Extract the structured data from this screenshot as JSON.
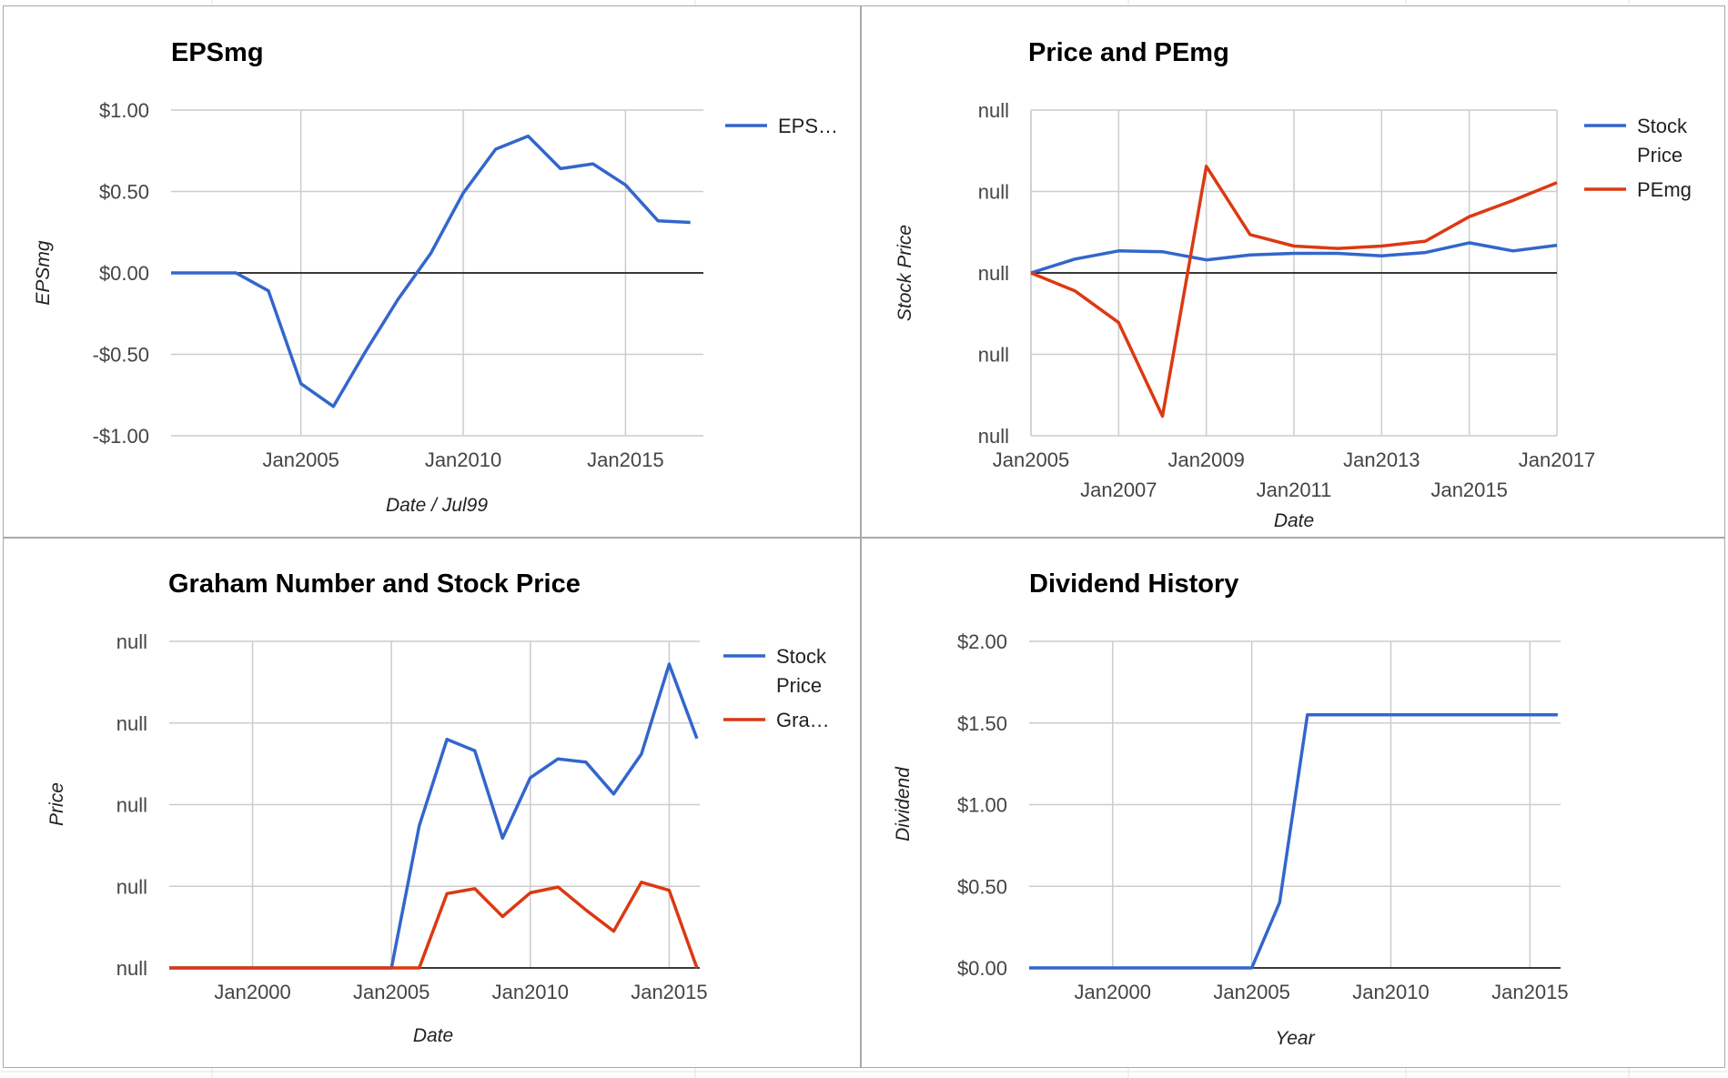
{
  "colors": {
    "blue": "#3366cc",
    "red": "#dc3912",
    "grid": "#cccccc",
    "baseline": "#000000"
  },
  "chart_data": [
    {
      "id": "epsmg",
      "type": "line",
      "title": "EPSmg",
      "xlabel": "Date / Jul99",
      "ylabel": "EPSmg",
      "x_ticks": [
        "Jan2005",
        "Jan2010",
        "Jan2015"
      ],
      "y_ticks": [
        "$1.00",
        "$0.50",
        "$0.00",
        "-$0.50",
        "-$1.00"
      ],
      "ylim": [
        -1.0,
        1.0
      ],
      "grid": true,
      "legend_position": "right",
      "legend": [
        "EPS…"
      ],
      "series": [
        {
          "name": "EPS…",
          "x": [
            "Jan2001",
            "Jan2002",
            "Jan2003",
            "Jan2004",
            "Jan2005",
            "Jan2006",
            "Jan2007",
            "Jan2008",
            "Jan2009",
            "Jan2010",
            "Jan2011",
            "Jan2012",
            "Jan2013",
            "Jan2014",
            "Jan2015",
            "Jan2016",
            "Jan2017"
          ],
          "values": [
            0.0,
            0.0,
            0.0,
            -0.11,
            -0.68,
            -0.82,
            -0.48,
            -0.16,
            0.12,
            0.49,
            0.76,
            0.84,
            0.64,
            0.67,
            0.54,
            0.32,
            0.31
          ]
        }
      ]
    },
    {
      "id": "price-pemg",
      "type": "line",
      "title": "Price and PEmg",
      "xlabel": "Date",
      "ylabel": "Stock Price",
      "x_ticks": [
        "Jan2005",
        "Jan2007",
        "Jan2009",
        "Jan2011",
        "Jan2013",
        "Jan2015",
        "Jan2017"
      ],
      "y_ticks": [
        "null",
        "null",
        "null",
        "null",
        "null"
      ],
      "grid": true,
      "legend_position": "right",
      "legend": [
        "Stock Price",
        "PEmg"
      ],
      "series": [
        {
          "name": "Stock Price",
          "x": [
            "Jan2005",
            "Jan2006",
            "Jan2007",
            "Jan2008",
            "Jan2009",
            "Jan2010",
            "Jan2011",
            "Jan2012",
            "Jan2013",
            "Jan2014",
            "Jan2015",
            "Jan2016",
            "Jan2017"
          ],
          "values": [
            0.0,
            0.17,
            0.27,
            0.26,
            0.16,
            0.22,
            0.24,
            0.24,
            0.21,
            0.25,
            0.37,
            0.27,
            0.34
          ]
        },
        {
          "name": "PEmg",
          "x": [
            "Jan2005",
            "Jan2006",
            "Jan2007",
            "Jan2008",
            "Jan2009",
            "Jan2010",
            "Jan2011",
            "Jan2012",
            "Jan2013",
            "Jan2014",
            "Jan2015",
            "Jan2016",
            "Jan2017"
          ],
          "values": [
            0.0,
            -0.22,
            -0.61,
            -1.76,
            1.31,
            0.47,
            0.33,
            0.3,
            0.33,
            0.39,
            0.69,
            0.89,
            1.11
          ]
        }
      ]
    },
    {
      "id": "graham",
      "type": "line",
      "title": "Graham Number and Stock Price",
      "xlabel": "Date",
      "ylabel": "Price",
      "x_ticks": [
        "Jan2000",
        "Jan2005",
        "Jan2010",
        "Jan2015"
      ],
      "y_ticks": [
        "null",
        "null",
        "null",
        "null",
        "null"
      ],
      "grid": true,
      "legend_position": "right",
      "legend": [
        "Stock Price",
        "Gra…"
      ],
      "series": [
        {
          "name": "Stock Price",
          "x": [
            "Jan1997",
            "Jan1998",
            "Jan1999",
            "Jan2000",
            "Jan2001",
            "Jan2002",
            "Jan2003",
            "Jan2004",
            "Jan2005",
            "Jan2006",
            "Jan2007",
            "Jan2008",
            "Jan2009",
            "Jan2010",
            "Jan2011",
            "Jan2012",
            "Jan2013",
            "Jan2014",
            "Jan2015",
            "Jan2016"
          ],
          "values": [
            0,
            0,
            0,
            0,
            0,
            0,
            0,
            0,
            0,
            1.74,
            2.8,
            2.66,
            1.59,
            2.33,
            2.56,
            2.52,
            2.13,
            2.62,
            3.72,
            2.81
          ]
        },
        {
          "name": "Gra…",
          "x": [
            "Jan1997",
            "Jan1998",
            "Jan1999",
            "Jan2000",
            "Jan2001",
            "Jan2002",
            "Jan2003",
            "Jan2004",
            "Jan2005",
            "Jan2006",
            "Jan2007",
            "Jan2008",
            "Jan2009",
            "Jan2010",
            "Jan2011",
            "Jan2012",
            "Jan2013",
            "Jan2014",
            "Jan2015",
            "Jan2016"
          ],
          "values": [
            0,
            0,
            0,
            0,
            0,
            0,
            0,
            0,
            0,
            0,
            0.91,
            0.97,
            0.63,
            0.92,
            0.99,
            0.71,
            0.45,
            1.05,
            0.95,
            0
          ]
        }
      ]
    },
    {
      "id": "dividend",
      "type": "line",
      "title": "Dividend History",
      "xlabel": "Year",
      "ylabel": "Dividend",
      "x_ticks": [
        "Jan2000",
        "Jan2005",
        "Jan2010",
        "Jan2015"
      ],
      "y_ticks": [
        "$2.00",
        "$1.50",
        "$1.00",
        "$0.50",
        "$0.00"
      ],
      "ylim": [
        0,
        2.0
      ],
      "grid": true,
      "legend_position": "none",
      "series": [
        {
          "name": "",
          "x": [
            "Jan1997",
            "Jan1998",
            "Jan1999",
            "Jan2000",
            "Jan2001",
            "Jan2002",
            "Jan2003",
            "Jan2004",
            "Jan2005",
            "Jan2006",
            "Jan2007",
            "Jan2008",
            "Jan2009",
            "Jan2010",
            "Jan2011",
            "Jan2012",
            "Jan2013",
            "Jan2014",
            "Jan2015",
            "Jan2016"
          ],
          "values": [
            0,
            0,
            0,
            0,
            0,
            0,
            0,
            0,
            0,
            0.4,
            1.55,
            1.55,
            1.55,
            1.55,
            1.55,
            1.55,
            1.55,
            1.55,
            1.55,
            1.55
          ]
        }
      ]
    }
  ]
}
